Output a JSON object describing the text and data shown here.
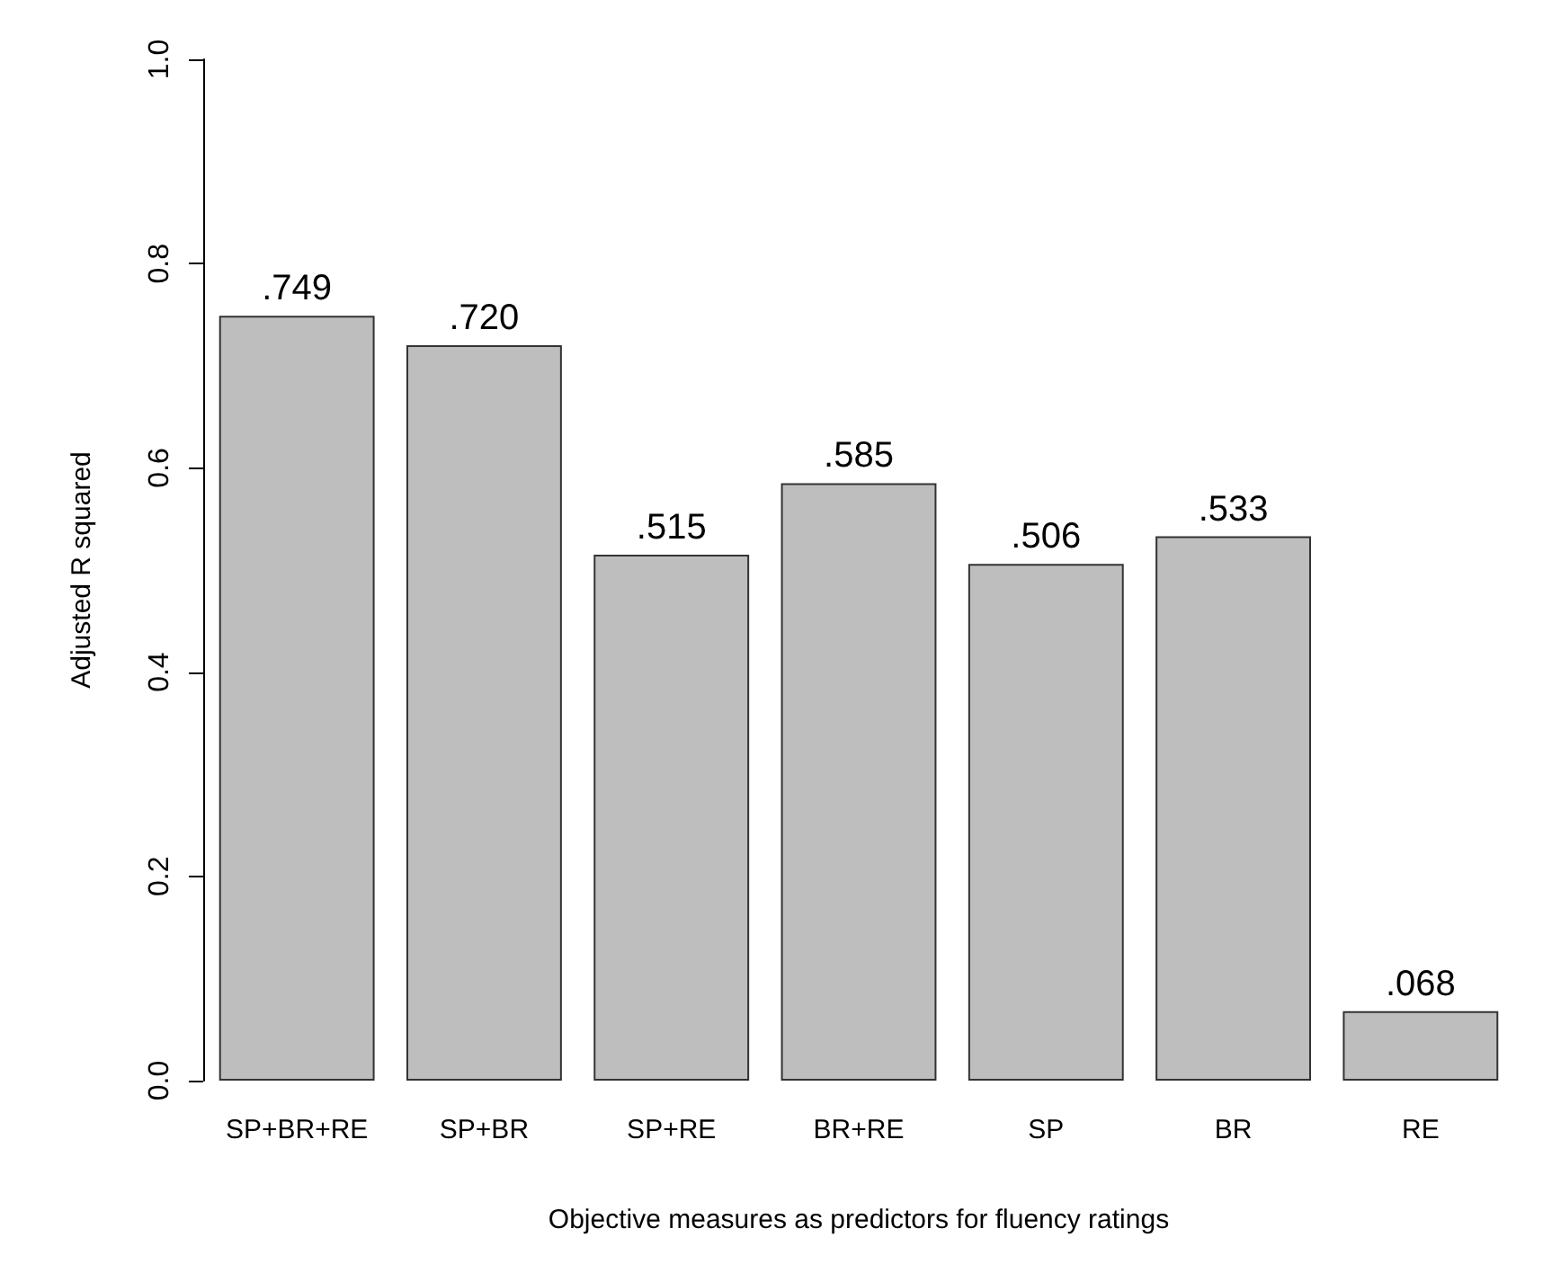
{
  "chart_data": {
    "type": "bar",
    "categories": [
      "SP+BR+RE",
      "SP+BR",
      "SP+RE",
      "BR+RE",
      "SP",
      "BR",
      "RE"
    ],
    "values": [
      0.749,
      0.72,
      0.515,
      0.585,
      0.506,
      0.533,
      0.068
    ],
    "value_labels": [
      ".749",
      ".720",
      ".515",
      ".585",
      ".506",
      ".533",
      ".068"
    ],
    "color": "#bebebe",
    "xlabel": "Objective measures as predictors for fluency ratings",
    "ylabel": "Adjusted R squared",
    "ylim": [
      0,
      1
    ],
    "yticks": [
      {
        "value": 0,
        "label": "0.0"
      },
      {
        "value": 0.2,
        "label": "0.2"
      },
      {
        "value": 0.4,
        "label": "0.4"
      },
      {
        "value": 0.6,
        "label": "0.6"
      },
      {
        "value": 0.8,
        "label": "0.8"
      },
      {
        "value": 1,
        "label": "1.0"
      }
    ],
    "grid": false
  }
}
